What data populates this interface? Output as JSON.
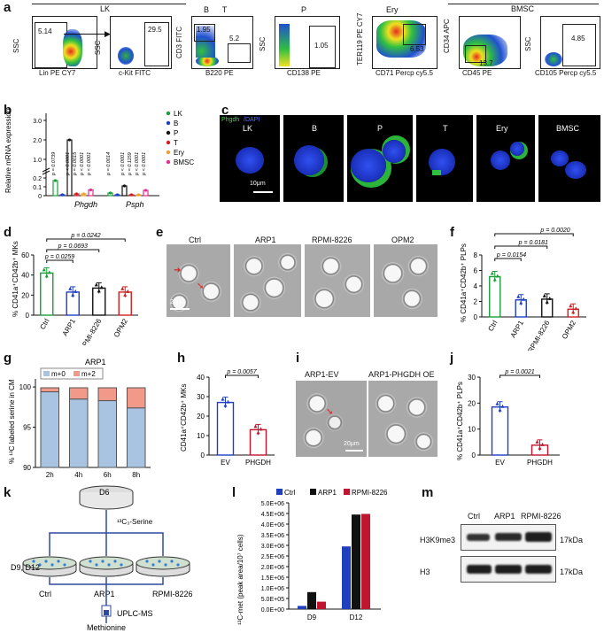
{
  "panel_letters": {
    "a": "a",
    "b": "b",
    "c": "c",
    "d": "d",
    "e": "e",
    "f": "f",
    "g": "g",
    "h": "h",
    "i": "i",
    "j": "j",
    "k": "k",
    "l": "l",
    "m": "m"
  },
  "a": {
    "group_lk": "LK",
    "group_bmsc": "BMSC",
    "plots": [
      {
        "top": "",
        "y": "SSC",
        "x": "Lin PE CY7",
        "gates": [
          "5.14"
        ]
      },
      {
        "top": "",
        "y": "SSC",
        "x": "c-Kit FITC",
        "gates": [
          "29.5"
        ]
      },
      {
        "top": "B      T",
        "y": "CD3 FITC",
        "x": "B220 PE",
        "gates": [
          "1.95",
          "5.2"
        ]
      },
      {
        "top": "P",
        "y": "SSC",
        "x": "CD138 PE",
        "gates": [
          "1.05"
        ]
      },
      {
        "top": "Ery",
        "y": "TER119 PE CY7",
        "x": "CD71 Percp cy5.5",
        "gates": [
          "6.53"
        ]
      },
      {
        "top": "",
        "y": "CD34 APC",
        "x": "CD45 PE",
        "gates": [
          "13.7"
        ]
      },
      {
        "top": "",
        "y": "SSC",
        "x": "CD105 Percp cy5.5",
        "gates": [
          "4.85"
        ]
      }
    ]
  },
  "b": {
    "ylabel": "Relative mRNA expression",
    "genes": [
      "Phgdh",
      "Psph"
    ],
    "legend": [
      "LK",
      "B",
      "P",
      "T",
      "Ery",
      "BMSC"
    ],
    "colors": [
      "#1b9e3a",
      "#1f3fbf",
      "#111111",
      "#d02020",
      "#f0a030",
      "#e03090"
    ],
    "yticks": [
      "0",
      "0.1",
      "0.2",
      "1.0",
      "2.0",
      "3.0"
    ],
    "pvals": [
      "p = 0.0739",
      "p < 0.0001",
      "p = 0.0015",
      "p < 0.0001",
      "p < 0.0001",
      "p = 0.0014",
      "p < 0.0001",
      "p = 0.1159",
      "p < 0.0001",
      "p < 0.0001"
    ]
  },
  "c": {
    "labels": [
      "LK",
      "B",
      "P",
      "T",
      "Ery",
      "BMSC"
    ],
    "stain": "Phgdh",
    "dapi": "/DAPI",
    "scale": "10μm"
  },
  "d": {
    "ylabel": "% CD41a⁺CD42b⁺ MKs",
    "categories": [
      "Ctrl",
      "ARP1",
      "RPMI-8226",
      "OPM2"
    ],
    "values": [
      42,
      23,
      27,
      23
    ],
    "yticks": [
      "0",
      "20",
      "40",
      "60"
    ],
    "pvals": [
      "p = 0.0242",
      "p = 0.0693",
      "p = 0.0259"
    ]
  },
  "e": {
    "labels": [
      "Ctrl",
      "ARP1",
      "RPMI-8226",
      "OPM2"
    ],
    "scale": "20μm"
  },
  "f": {
    "ylabel": "% CD41a⁺CD42b⁺ PLPs",
    "categories": [
      "Ctrl",
      "ARP1",
      "RPMI-8226",
      "OPM2"
    ],
    "values": [
      5.2,
      2.2,
      2.3,
      1.0
    ],
    "yticks": [
      "0",
      "2",
      "4",
      "6",
      "8"
    ],
    "pvals": [
      "p = 0.0020",
      "p = 0.0181",
      "p = 0.0154"
    ]
  },
  "g": {
    "title": "ARP1",
    "ylabel": "% ¹³C labeled serine in CM",
    "legend": [
      "m+0",
      "m+2"
    ],
    "categories": [
      "2h",
      "4h",
      "6h",
      "8h"
    ],
    "m0": [
      99.4,
      98.5,
      98.3,
      97.4
    ],
    "total": [
      99.9,
      99.9,
      99.9,
      99.9
    ],
    "yticks": [
      "90",
      "95",
      "100"
    ]
  },
  "h": {
    "ylabel": "CD41a⁺CD42b⁺ MKs",
    "categories": [
      "EV",
      "PHGDH"
    ],
    "values": [
      27,
      13
    ],
    "yticks": [
      "0",
      "10",
      "20",
      "30",
      "40"
    ],
    "pval": "p = 0.0057"
  },
  "i": {
    "labels": [
      "ARP1-EV",
      "ARP1-PHGDH OE"
    ],
    "scale": "20μm"
  },
  "j": {
    "ylabel": "% CD41a⁺CD42b⁺ PLPs",
    "categories": [
      "EV",
      "PHGDH"
    ],
    "values": [
      18.5,
      3.8
    ],
    "yticks": [
      "0",
      "10",
      "20",
      "30"
    ],
    "pval": "p = 0.0021"
  },
  "k": {
    "d6": "D6",
    "tracer": "¹³C₃-Serine",
    "days": "D9, D12",
    "dishes": [
      "Ctrl",
      "ARP1",
      "RPMI-8226"
    ],
    "method": "UPLC-MS",
    "product": "Methionine"
  },
  "l": {
    "ylabel": "¹³C-met (peak area/10⁷ cells)",
    "legend": [
      "Ctrl",
      "ARP1",
      "RPMI-8226"
    ],
    "colors": [
      "#1f3fbf",
      "#111111",
      "#c0152f"
    ],
    "categories": [
      "D9",
      "D12"
    ],
    "series": [
      [
        150000,
        2950000
      ],
      [
        800000,
        4450000
      ],
      [
        350000,
        4480000
      ]
    ],
    "yticks": [
      "0.0E+00",
      "5.0E+05",
      "1.0E+06",
      "1.5E+06",
      "2.0E+06",
      "2.5E+06",
      "3.0E+06",
      "3.5E+06",
      "4.0E+06",
      "4.5E+06",
      "5.0E+06"
    ]
  },
  "m": {
    "cols": [
      "Ctrl",
      "ARP1",
      "RPMI-8226"
    ],
    "rows": [
      {
        "name": "H3K9me3",
        "kda": "17kDa"
      },
      {
        "name": "H3",
        "kda": "17kDa"
      }
    ]
  }
}
